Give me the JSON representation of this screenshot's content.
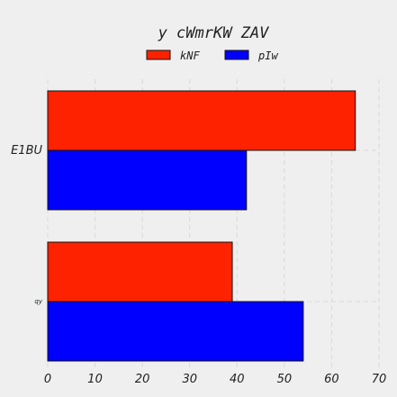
{
  "chart_data": {
    "type": "bar",
    "orientation": "horizontal",
    "title": "y cWmrKW ZAV",
    "xlabel": "",
    "ylabel": "",
    "categories": [
      "E1BU",
      "qy"
    ],
    "series": [
      {
        "name": "kNF",
        "values": [
          65,
          39
        ],
        "color": "#ff2200"
      },
      {
        "name": "pIw",
        "values": [
          42,
          54
        ],
        "color": "#0000ff"
      }
    ],
    "xlim": [
      0,
      70
    ],
    "xticks": [
      0,
      10,
      20,
      30,
      40,
      50,
      60,
      70
    ],
    "grid": true,
    "legend_position": "top-center"
  }
}
